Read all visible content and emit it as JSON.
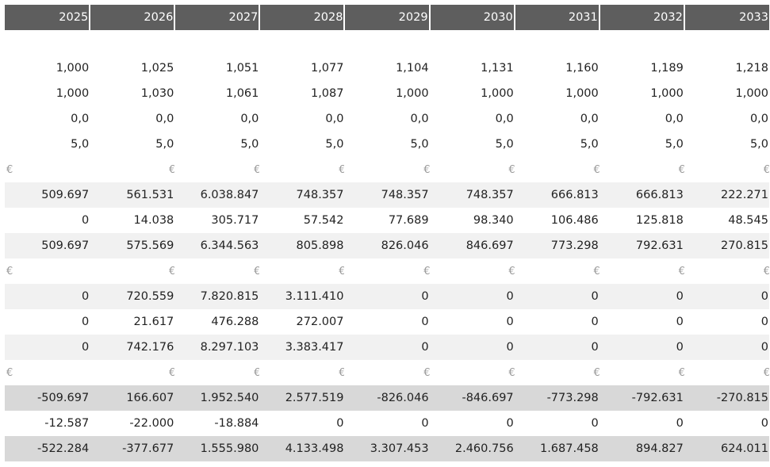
{
  "currency_symbol": "€",
  "years": [
    "2025",
    "2026",
    "2027",
    "2028",
    "2029",
    "2030",
    "2031",
    "2032",
    "2033"
  ],
  "rows": [
    {
      "type": "spacer"
    },
    {
      "type": "plain",
      "cells": [
        "1,000",
        "1,025",
        "1,051",
        "1,077",
        "1,104",
        "1,131",
        "1,160",
        "1,189",
        "1,218"
      ]
    },
    {
      "type": "plain",
      "cells": [
        "1,000",
        "1,030",
        "1,061",
        "1,087",
        "1,000",
        "1,000",
        "1,000",
        "1,000",
        "1,000"
      ]
    },
    {
      "type": "plain",
      "cells": [
        "0,0",
        "0,0",
        "0,0",
        "0,0",
        "0,0",
        "0,0",
        "0,0",
        "0,0",
        "0,0"
      ]
    },
    {
      "type": "plain",
      "cells": [
        "5,0",
        "5,0",
        "5,0",
        "5,0",
        "5,0",
        "5,0",
        "5,0",
        "5,0",
        "5,0"
      ]
    },
    {
      "type": "euro"
    },
    {
      "type": "light",
      "cells": [
        "509.697",
        "561.531",
        "6.038.847",
        "748.357",
        "748.357",
        "748.357",
        "666.813",
        "666.813",
        "222.271"
      ]
    },
    {
      "type": "plain",
      "cells": [
        "0",
        "14.038",
        "305.717",
        "57.542",
        "77.689",
        "98.340",
        "106.486",
        "125.818",
        "48.545"
      ]
    },
    {
      "type": "light",
      "cells": [
        "509.697",
        "575.569",
        "6.344.563",
        "805.898",
        "826.046",
        "846.697",
        "773.298",
        "792.631",
        "270.815"
      ]
    },
    {
      "type": "euro"
    },
    {
      "type": "light",
      "cells": [
        "0",
        "720.559",
        "7.820.815",
        "3.111.410",
        "0",
        "0",
        "0",
        "0",
        "0"
      ]
    },
    {
      "type": "plain",
      "cells": [
        "0",
        "21.617",
        "476.288",
        "272.007",
        "0",
        "0",
        "0",
        "0",
        "0"
      ]
    },
    {
      "type": "light",
      "cells": [
        "0",
        "742.176",
        "8.297.103",
        "3.383.417",
        "0",
        "0",
        "0",
        "0",
        "0"
      ]
    },
    {
      "type": "euro"
    },
    {
      "type": "dark",
      "cells": [
        "-509.697",
        "166.607",
        "1.952.540",
        "2.577.519",
        "-826.046",
        "-846.697",
        "-773.298",
        "-792.631",
        "-270.815"
      ]
    },
    {
      "type": "plain",
      "cells": [
        "-12.587",
        "-22.000",
        "-18.884",
        "0",
        "0",
        "0",
        "0",
        "0",
        "0"
      ]
    },
    {
      "type": "dark",
      "cells": [
        "-522.284",
        "-377.677",
        "1.555.980",
        "4.133.498",
        "3.307.453",
        "2.460.756",
        "1.687.458",
        "894.827",
        "624.011"
      ]
    }
  ]
}
